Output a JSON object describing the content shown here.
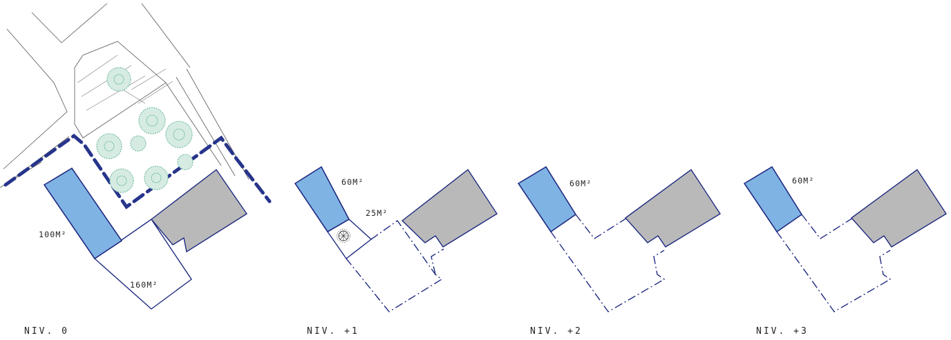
{
  "panels": [
    {
      "level_label": "NIV. 0",
      "areas": [
        "100M²",
        "160M²"
      ]
    },
    {
      "level_label": "NIV. +1",
      "areas": [
        "60M²",
        "25M²"
      ]
    },
    {
      "level_label": "NIV. +2",
      "areas": [
        "60M²"
      ]
    },
    {
      "level_label": "NIV. +3",
      "areas": [
        "60M²"
      ]
    }
  ],
  "colors": {
    "blue_volume": "#7fb3e3",
    "existing_building": "#b9b9b9",
    "outline": "#1f2a80",
    "boundary_dashed": "#27348b",
    "trees": "#7cbfa6"
  },
  "icons": [
    "tree-icon",
    "spiral-stair-icon"
  ]
}
